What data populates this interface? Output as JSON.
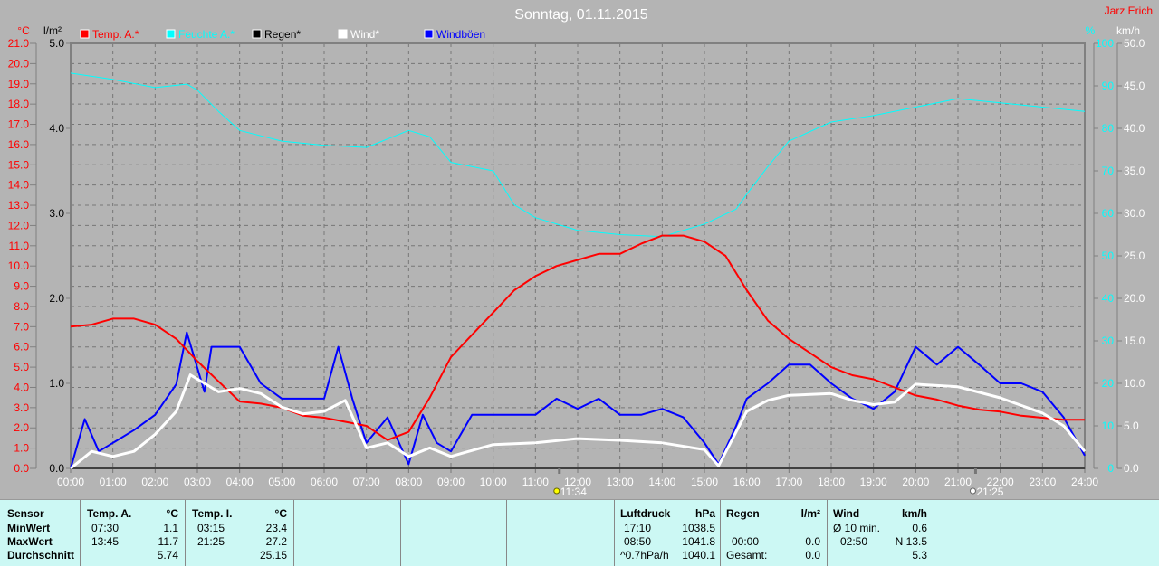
{
  "title": "Sonntag, 01.11.2015",
  "author": "Jarz Erich",
  "colors": {
    "temp": "#ff0000",
    "humidity": "#00ffff",
    "rain": "#000000",
    "wind": "#ffffff",
    "gust": "#0000ff",
    "background": "#b4b4b4",
    "panel": "#ccf8f4"
  },
  "legend": [
    {
      "label": "Temp. A.*",
      "color": "#ff0000"
    },
    {
      "label": "Feuchte A.*",
      "color": "#00ffff"
    },
    {
      "label": "Regen*",
      "color": "#000000"
    },
    {
      "label": "Wind*",
      "color": "#ffffff"
    },
    {
      "label": "Windböen",
      "color": "#0000ff"
    }
  ],
  "markers": [
    {
      "time": "11:34",
      "icon": "sun-icon"
    },
    {
      "time": "21:25",
      "icon": "moon-icon"
    }
  ],
  "chart_data": {
    "type": "line",
    "title": "Sonntag, 01.11.2015",
    "grid": true,
    "legend_placement": "top-left",
    "x_ticks": [
      "00:00",
      "01:00",
      "02:00",
      "03:00",
      "04:00",
      "05:00",
      "06:00",
      "07:00",
      "08:00",
      "09:00",
      "10:00",
      "11:00",
      "12:00",
      "13:00",
      "14:00",
      "15:00",
      "16:00",
      "17:00",
      "18:00",
      "19:00",
      "20:00",
      "21:00",
      "22:00",
      "23:00",
      "24:00"
    ],
    "xlim": [
      "00:00",
      "24:00"
    ],
    "axes": {
      "temp": {
        "unit": "°C",
        "range": [
          0,
          21
        ],
        "ticks": [
          "0.0",
          "1.0",
          "2.0",
          "3.0",
          "4.0",
          "5.0",
          "6.0",
          "7.0",
          "8.0",
          "9.0",
          "10.0",
          "11.0",
          "12.0",
          "13.0",
          "14.0",
          "15.0",
          "16.0",
          "17.0",
          "18.0",
          "19.0",
          "20.0",
          "21.0"
        ]
      },
      "rain": {
        "unit": "l/m²",
        "range": [
          0,
          5
        ],
        "ticks": [
          "0.0",
          "1.0",
          "2.0",
          "3.0",
          "4.0",
          "5.0"
        ]
      },
      "humidity": {
        "unit": "%",
        "range": [
          0,
          100
        ],
        "ticks": [
          "0",
          "10",
          "20",
          "30",
          "40",
          "50",
          "60",
          "70",
          "80",
          "90",
          "100"
        ]
      },
      "wind": {
        "unit": "km/h",
        "range": [
          0,
          50
        ],
        "ticks": [
          "0.0",
          "5.0",
          "10.0",
          "15.0",
          "20.0",
          "25.0",
          "30.0",
          "35.0",
          "40.0",
          "45.0",
          "50.0"
        ]
      }
    },
    "series": [
      {
        "name": "Temp. A.*",
        "axis": "temp",
        "points": [
          [
            "00:00",
            7.0
          ],
          [
            "00:30",
            7.1
          ],
          [
            "01:00",
            7.4
          ],
          [
            "01:30",
            7.4
          ],
          [
            "02:00",
            7.1
          ],
          [
            "02:30",
            6.4
          ],
          [
            "03:00",
            5.3
          ],
          [
            "03:30",
            4.3
          ],
          [
            "04:00",
            3.3
          ],
          [
            "04:30",
            3.2
          ],
          [
            "05:00",
            3.0
          ],
          [
            "05:30",
            2.6
          ],
          [
            "06:00",
            2.5
          ],
          [
            "06:30",
            2.3
          ],
          [
            "07:00",
            2.1
          ],
          [
            "07:30",
            1.4
          ],
          [
            "08:00",
            1.8
          ],
          [
            "08:30",
            3.5
          ],
          [
            "09:00",
            5.5
          ],
          [
            "09:30",
            6.6
          ],
          [
            "10:00",
            7.7
          ],
          [
            "10:30",
            8.8
          ],
          [
            "11:00",
            9.5
          ],
          [
            "11:30",
            10.0
          ],
          [
            "12:00",
            10.3
          ],
          [
            "12:30",
            10.6
          ],
          [
            "13:00",
            10.6
          ],
          [
            "13:30",
            11.1
          ],
          [
            "14:00",
            11.5
          ],
          [
            "14:30",
            11.5
          ],
          [
            "15:00",
            11.2
          ],
          [
            "15:30",
            10.5
          ],
          [
            "16:00",
            8.8
          ],
          [
            "16:30",
            7.3
          ],
          [
            "17:00",
            6.4
          ],
          [
            "17:30",
            5.7
          ],
          [
            "18:00",
            5.0
          ],
          [
            "18:30",
            4.6
          ],
          [
            "19:00",
            4.4
          ],
          [
            "19:30",
            4.0
          ],
          [
            "20:00",
            3.6
          ],
          [
            "20:30",
            3.4
          ],
          [
            "21:00",
            3.1
          ],
          [
            "21:30",
            2.9
          ],
          [
            "22:00",
            2.8
          ],
          [
            "22:30",
            2.6
          ],
          [
            "23:00",
            2.5
          ],
          [
            "23:30",
            2.4
          ],
          [
            "24:00",
            2.4
          ]
        ]
      },
      {
        "name": "Feuchte A.*",
        "axis": "humidity",
        "points": [
          [
            "00:00",
            93
          ],
          [
            "01:00",
            91.5
          ],
          [
            "02:00",
            89.6
          ],
          [
            "02:45",
            90.4
          ],
          [
            "03:00",
            89
          ],
          [
            "03:30",
            84
          ],
          [
            "04:00",
            79.5
          ],
          [
            "05:00",
            77
          ],
          [
            "06:00",
            76
          ],
          [
            "07:00",
            75.5
          ],
          [
            "08:00",
            79.5
          ],
          [
            "08:30",
            78
          ],
          [
            "09:00",
            72
          ],
          [
            "10:00",
            70
          ],
          [
            "10:30",
            62
          ],
          [
            "11:00",
            59
          ],
          [
            "12:00",
            56
          ],
          [
            "13:00",
            55
          ],
          [
            "14:00",
            54.5
          ],
          [
            "15:00",
            57.5
          ],
          [
            "15:45",
            61
          ],
          [
            "16:00",
            64.5
          ],
          [
            "16:30",
            71
          ],
          [
            "17:00",
            77
          ],
          [
            "18:00",
            81.5
          ],
          [
            "19:00",
            83
          ],
          [
            "20:00",
            85
          ],
          [
            "21:00",
            87
          ],
          [
            "22:00",
            86
          ],
          [
            "23:00",
            85
          ],
          [
            "24:00",
            84
          ]
        ]
      },
      {
        "name": "Regen*",
        "axis": "rain",
        "points": [
          [
            "00:00",
            0
          ],
          [
            "24:00",
            0
          ]
        ]
      },
      {
        "name": "Wind*",
        "axis": "wind",
        "points": [
          [
            "00:00",
            0
          ],
          [
            "00:30",
            2
          ],
          [
            "01:00",
            1.4
          ],
          [
            "01:30",
            2
          ],
          [
            "02:00",
            4
          ],
          [
            "02:30",
            6.7
          ],
          [
            "02:50",
            11
          ],
          [
            "03:30",
            9
          ],
          [
            "04:00",
            9.4
          ],
          [
            "04:30",
            8.8
          ],
          [
            "05:00",
            7.2
          ],
          [
            "05:30",
            6.4
          ],
          [
            "06:00",
            6.7
          ],
          [
            "06:30",
            8
          ],
          [
            "07:00",
            2.4
          ],
          [
            "07:30",
            3
          ],
          [
            "08:00",
            1.4
          ],
          [
            "08:30",
            2.4
          ],
          [
            "09:00",
            1.4
          ],
          [
            "10:00",
            2.8
          ],
          [
            "11:00",
            3
          ],
          [
            "12:00",
            3.5
          ],
          [
            "13:00",
            3.3
          ],
          [
            "14:00",
            3
          ],
          [
            "15:00",
            2.2
          ],
          [
            "15:20",
            0.3
          ],
          [
            "16:00",
            6.7
          ],
          [
            "16:30",
            8
          ],
          [
            "17:00",
            8.6
          ],
          [
            "18:00",
            8.8
          ],
          [
            "18:30",
            8
          ],
          [
            "19:00",
            7.5
          ],
          [
            "19:30",
            7.8
          ],
          [
            "20:00",
            9.9
          ],
          [
            "21:00",
            9.6
          ],
          [
            "22:00",
            8.3
          ],
          [
            "23:00",
            6.5
          ],
          [
            "23:30",
            5
          ],
          [
            "24:00",
            2
          ]
        ]
      },
      {
        "name": "Windböen",
        "axis": "wind",
        "points": [
          [
            "00:00",
            0
          ],
          [
            "00:20",
            5.8
          ],
          [
            "00:40",
            2
          ],
          [
            "01:00",
            3
          ],
          [
            "01:30",
            4.5
          ],
          [
            "02:00",
            6.3
          ],
          [
            "02:30",
            9.9
          ],
          [
            "02:45",
            16
          ],
          [
            "03:10",
            9
          ],
          [
            "03:20",
            14.3
          ],
          [
            "04:00",
            14.3
          ],
          [
            "04:30",
            10
          ],
          [
            "05:00",
            8.2
          ],
          [
            "05:30",
            8.2
          ],
          [
            "06:00",
            8.2
          ],
          [
            "06:20",
            14.3
          ],
          [
            "06:40",
            8.2
          ],
          [
            "07:00",
            3
          ],
          [
            "07:30",
            6
          ],
          [
            "08:00",
            0.5
          ],
          [
            "08:20",
            6.3
          ],
          [
            "08:40",
            3
          ],
          [
            "09:00",
            2
          ],
          [
            "09:30",
            6.3
          ],
          [
            "10:00",
            6.3
          ],
          [
            "10:30",
            6.3
          ],
          [
            "11:00",
            6.3
          ],
          [
            "11:30",
            8.2
          ],
          [
            "12:00",
            7
          ],
          [
            "12:30",
            8.2
          ],
          [
            "13:00",
            6.3
          ],
          [
            "13:30",
            6.3
          ],
          [
            "14:00",
            7
          ],
          [
            "14:30",
            6
          ],
          [
            "15:00",
            3
          ],
          [
            "15:20",
            0.5
          ],
          [
            "15:45",
            5
          ],
          [
            "16:00",
            8.2
          ],
          [
            "16:30",
            10
          ],
          [
            "17:00",
            12.2
          ],
          [
            "17:30",
            12.2
          ],
          [
            "18:00",
            10
          ],
          [
            "18:30",
            8.2
          ],
          [
            "19:00",
            7
          ],
          [
            "19:30",
            9
          ],
          [
            "20:00",
            14.3
          ],
          [
            "20:30",
            12.2
          ],
          [
            "21:00",
            14.3
          ],
          [
            "21:30",
            12.2
          ],
          [
            "22:00",
            10
          ],
          [
            "22:30",
            10
          ],
          [
            "23:00",
            9
          ],
          [
            "23:30",
            6
          ],
          [
            "24:00",
            1.5
          ]
        ]
      }
    ]
  },
  "table": {
    "sensor": {
      "h": "Sensor",
      "r1": "MinWert",
      "r2": "MaxWert",
      "r3": "Durchschnitt"
    },
    "tempA": {
      "h": "Temp. A.",
      "u": "°C",
      "t1": "07:30",
      "v1": "1.1",
      "t2": "13:45",
      "v2": "11.7",
      "v3": "5.74"
    },
    "tempI": {
      "h": "Temp. I.",
      "u": "°C",
      "t1": "03:15",
      "v1": "23.4",
      "t2": "21:25",
      "v2": "27.2",
      "v3": "25.15"
    },
    "press": {
      "h": "Luftdruck",
      "u": "hPa",
      "t1": "17:10",
      "v1": "1038.5",
      "t2": "08:50",
      "v2": "1041.8",
      "t3": "^0.7hPa/h",
      "v3": "1040.1"
    },
    "rain": {
      "h": "Regen",
      "u": "l/m²",
      "t2": "00:00",
      "v2": "0.0",
      "t3": "Gesamt:",
      "v3": "0.0"
    },
    "wind": {
      "h": "Wind",
      "u": "km/h",
      "t1": "Ø 10 min.",
      "v1": "0.6",
      "t2": "02:50",
      "v2": "N 13.5",
      "v3": "5.3"
    }
  }
}
